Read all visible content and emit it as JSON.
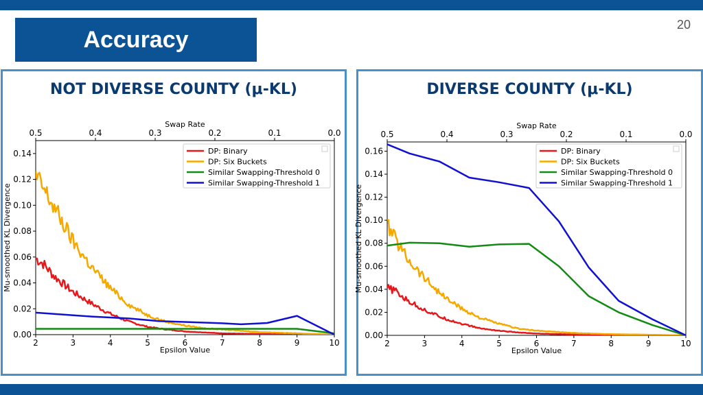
{
  "slide": {
    "title": "Accuracy",
    "page_number": "20"
  },
  "panels": [
    {
      "title": "NOT DIVERSE COUNTY (μ-KL)"
    },
    {
      "title": "DIVERSE COUNTY (μ-KL)"
    }
  ],
  "colors": {
    "binary": "#e31a1c",
    "six": "#f5a800",
    "thr0": "#138a13",
    "thr1": "#1010d0",
    "brand": "#0b5394"
  },
  "chart_data": [
    {
      "type": "line",
      "xlabel": "Epsilon Value",
      "ylabel": "Mu-smoothed KL Divergence",
      "top_xlabel": "Swap Rate",
      "xlim": [
        2,
        10
      ],
      "ylim": [
        0,
        0.15
      ],
      "xticks": [
        "2",
        "3",
        "4",
        "5",
        "6",
        "7",
        "8",
        "9",
        "10"
      ],
      "xtick_values": [
        2,
        3,
        4,
        5,
        6,
        7,
        8,
        9,
        10
      ],
      "yticks": [
        "0.00",
        "0.02",
        "0.04",
        "0.06",
        "0.08",
        "0.10",
        "0.12",
        "0.14"
      ],
      "ytick_values": [
        0,
        0.02,
        0.04,
        0.06,
        0.08,
        0.1,
        0.12,
        0.14
      ],
      "top_xticks": [
        "0.5",
        "0.4",
        "0.3",
        "0.2",
        "0.1",
        "0.0"
      ],
      "top_xtick_values": [
        2,
        3.6,
        5.2,
        6.8,
        8.4,
        10
      ],
      "legend": "top-right",
      "series": [
        {
          "name": "DP: Binary",
          "color": "#e31a1c",
          "noisy": true,
          "x": [
            2,
            2.2,
            2.5,
            3,
            3.5,
            4,
            4.5,
            5,
            5.5,
            6,
            7,
            8,
            9,
            10
          ],
          "y": [
            0.059,
            0.055,
            0.045,
            0.033,
            0.024,
            0.016,
            0.01,
            0.006,
            0.004,
            0.0025,
            0.001,
            0.0005,
            0.0002,
            0.0
          ]
        },
        {
          "name": "DP: Six Buckets",
          "color": "#f5a800",
          "noisy": true,
          "x": [
            2,
            2.2,
            2.5,
            3,
            3.5,
            4,
            4.5,
            5,
            5.5,
            6,
            6.5,
            7,
            8,
            9,
            10
          ],
          "y": [
            0.122,
            0.113,
            0.098,
            0.072,
            0.052,
            0.036,
            0.023,
            0.015,
            0.01,
            0.007,
            0.005,
            0.004,
            0.002,
            0.001,
            0.0
          ]
        },
        {
          "name": "Similar Swapping-Threshold 0",
          "color": "#138a13",
          "noisy": false,
          "x": [
            2,
            5.3,
            7.5,
            9,
            10
          ],
          "y": [
            0.0045,
            0.0045,
            0.0045,
            0.0045,
            0.001
          ]
        },
        {
          "name": "Similar Swapping-Threshold 1",
          "color": "#1010d0",
          "noisy": false,
          "x": [
            2,
            3.5,
            4.5,
            5.3,
            6,
            7,
            7.5,
            8.2,
            9,
            10
          ],
          "y": [
            0.017,
            0.014,
            0.0125,
            0.0105,
            0.0098,
            0.0088,
            0.008,
            0.009,
            0.0145,
            0.0
          ]
        }
      ]
    },
    {
      "type": "line",
      "xlabel": "Epsilon Value",
      "ylabel": "Mu-smoothed KL Divergence",
      "top_xlabel": "Swap Rate",
      "xlim": [
        2,
        10
      ],
      "ylim": [
        0,
        0.168
      ],
      "xticks": [
        "2",
        "3",
        "4",
        "5",
        "6",
        "7",
        "8",
        "9",
        "10"
      ],
      "xtick_values": [
        2,
        3,
        4,
        5,
        6,
        7,
        8,
        9,
        10
      ],
      "yticks": [
        "0.00",
        "0.02",
        "0.04",
        "0.06",
        "0.08",
        "0.10",
        "0.12",
        "0.14",
        "0.16"
      ],
      "ytick_values": [
        0,
        0.02,
        0.04,
        0.06,
        0.08,
        0.1,
        0.12,
        0.14,
        0.16
      ],
      "top_xticks": [
        "0.5",
        "0.4",
        "0.3",
        "0.2",
        "0.1",
        "0.0"
      ],
      "top_xtick_values": [
        2,
        3.6,
        5.2,
        6.8,
        8.4,
        10
      ],
      "legend": "top-right",
      "series": [
        {
          "name": "DP: Binary",
          "color": "#e31a1c",
          "noisy": true,
          "x": [
            2,
            2.2,
            2.5,
            3,
            3.5,
            4,
            4.5,
            5,
            5.5,
            6,
            7,
            8,
            9,
            10
          ],
          "y": [
            0.041,
            0.039,
            0.031,
            0.022,
            0.015,
            0.01,
            0.006,
            0.004,
            0.0025,
            0.0015,
            0.0007,
            0.0003,
            0.0001,
            0.0
          ]
        },
        {
          "name": "DP: Six Buckets",
          "color": "#f5a800",
          "noisy": true,
          "x": [
            2,
            2.2,
            2.5,
            3,
            3.5,
            4,
            4.5,
            5,
            5.5,
            6,
            7,
            8,
            9,
            10
          ],
          "y": [
            0.096,
            0.085,
            0.069,
            0.05,
            0.034,
            0.023,
            0.015,
            0.01,
            0.006,
            0.004,
            0.002,
            0.001,
            0.0005,
            0.0
          ]
        },
        {
          "name": "Similar Swapping-Threshold 0",
          "color": "#138a13",
          "noisy": false,
          "x": [
            2,
            2.6,
            3.4,
            4.2,
            5,
            5.8,
            6.6,
            7.4,
            8.2,
            9.1,
            10
          ],
          "y": [
            0.078,
            0.0805,
            0.08,
            0.077,
            0.079,
            0.0795,
            0.06,
            0.034,
            0.02,
            0.009,
            0.0
          ]
        },
        {
          "name": "Similar Swapping-Threshold 1",
          "color": "#1010d0",
          "noisy": false,
          "x": [
            2,
            2.6,
            3.4,
            4.2,
            5,
            5.8,
            6.6,
            7.4,
            8.2,
            9.1,
            10
          ],
          "y": [
            0.166,
            0.158,
            0.151,
            0.137,
            0.133,
            0.128,
            0.099,
            0.059,
            0.03,
            0.014,
            0.0
          ]
        }
      ]
    }
  ]
}
